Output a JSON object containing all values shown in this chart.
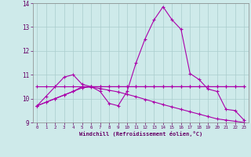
{
  "xlabel": "Windchill (Refroidissement éolien,°C)",
  "background_color": "#ceeaea",
  "grid_color": "#aacccc",
  "line_color": "#aa00aa",
  "x": [
    0,
    1,
    2,
    3,
    4,
    5,
    6,
    7,
    8,
    9,
    10,
    11,
    12,
    13,
    14,
    15,
    16,
    17,
    18,
    19,
    20,
    21,
    22,
    23
  ],
  "series1": [
    9.7,
    10.1,
    10.5,
    10.9,
    11.0,
    10.6,
    10.5,
    10.3,
    9.8,
    9.7,
    10.3,
    11.5,
    12.5,
    13.3,
    13.85,
    13.3,
    12.9,
    11.05,
    10.8,
    10.4,
    10.3,
    9.55,
    9.5,
    9.1
  ],
  "series2": [
    10.5,
    10.5,
    10.5,
    10.5,
    10.5,
    10.5,
    10.5,
    10.5,
    10.5,
    10.5,
    10.5,
    10.5,
    10.5,
    10.5,
    10.5,
    10.5,
    10.5,
    10.5,
    10.5,
    10.5,
    10.5,
    10.5,
    10.5,
    10.5
  ],
  "series3": [
    9.7,
    9.85,
    10.0,
    10.15,
    10.3,
    10.45,
    10.5,
    10.5,
    10.5,
    10.5,
    10.5,
    10.5,
    10.5,
    10.5,
    10.5,
    10.5,
    10.5,
    10.5,
    10.5,
    10.5,
    10.5,
    10.5,
    10.5,
    10.5
  ],
  "series4": [
    9.7,
    9.85,
    10.0,
    10.15,
    10.3,
    10.5,
    10.48,
    10.42,
    10.35,
    10.28,
    10.18,
    10.08,
    9.97,
    9.86,
    9.75,
    9.65,
    9.55,
    9.45,
    9.35,
    9.25,
    9.15,
    9.1,
    9.05,
    9.0
  ],
  "ylim": [
    9,
    14
  ],
  "xlim": [
    -0.5,
    23.5
  ],
  "yticks": [
    9,
    10,
    11,
    12,
    13,
    14
  ],
  "xticks": [
    0,
    1,
    2,
    3,
    4,
    5,
    6,
    7,
    8,
    9,
    10,
    11,
    12,
    13,
    14,
    15,
    16,
    17,
    18,
    19,
    20,
    21,
    22,
    23
  ]
}
